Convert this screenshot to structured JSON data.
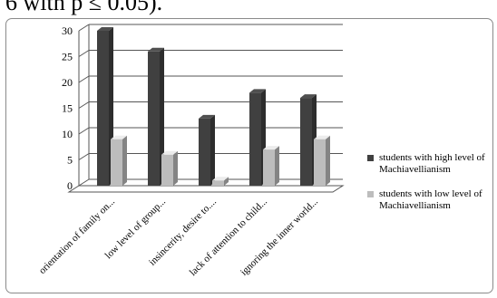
{
  "page_text": {
    "top_line": "6 with p ≤ 0.05)."
  },
  "chart_data": {
    "type": "bar",
    "categories": [
      "orientation of family on...",
      "low level of group...",
      "insincerity, desire to....",
      "lack of attention to child...",
      "ignoring the inner world..."
    ],
    "series": [
      {
        "name": "students with high level of Machiavellianism",
        "values": [
          30,
          26,
          13,
          18,
          17
        ],
        "color": "#404040"
      },
      {
        "name": "students with low level of Machiavellianism",
        "values": [
          9,
          6,
          1,
          7,
          9
        ],
        "color": "#bdbdbd"
      }
    ],
    "yticks": [
      "0",
      "5",
      "10",
      "15",
      "20",
      "25",
      "30"
    ],
    "ylim": [
      0,
      30
    ],
    "grid": true,
    "legend_position": "right"
  }
}
